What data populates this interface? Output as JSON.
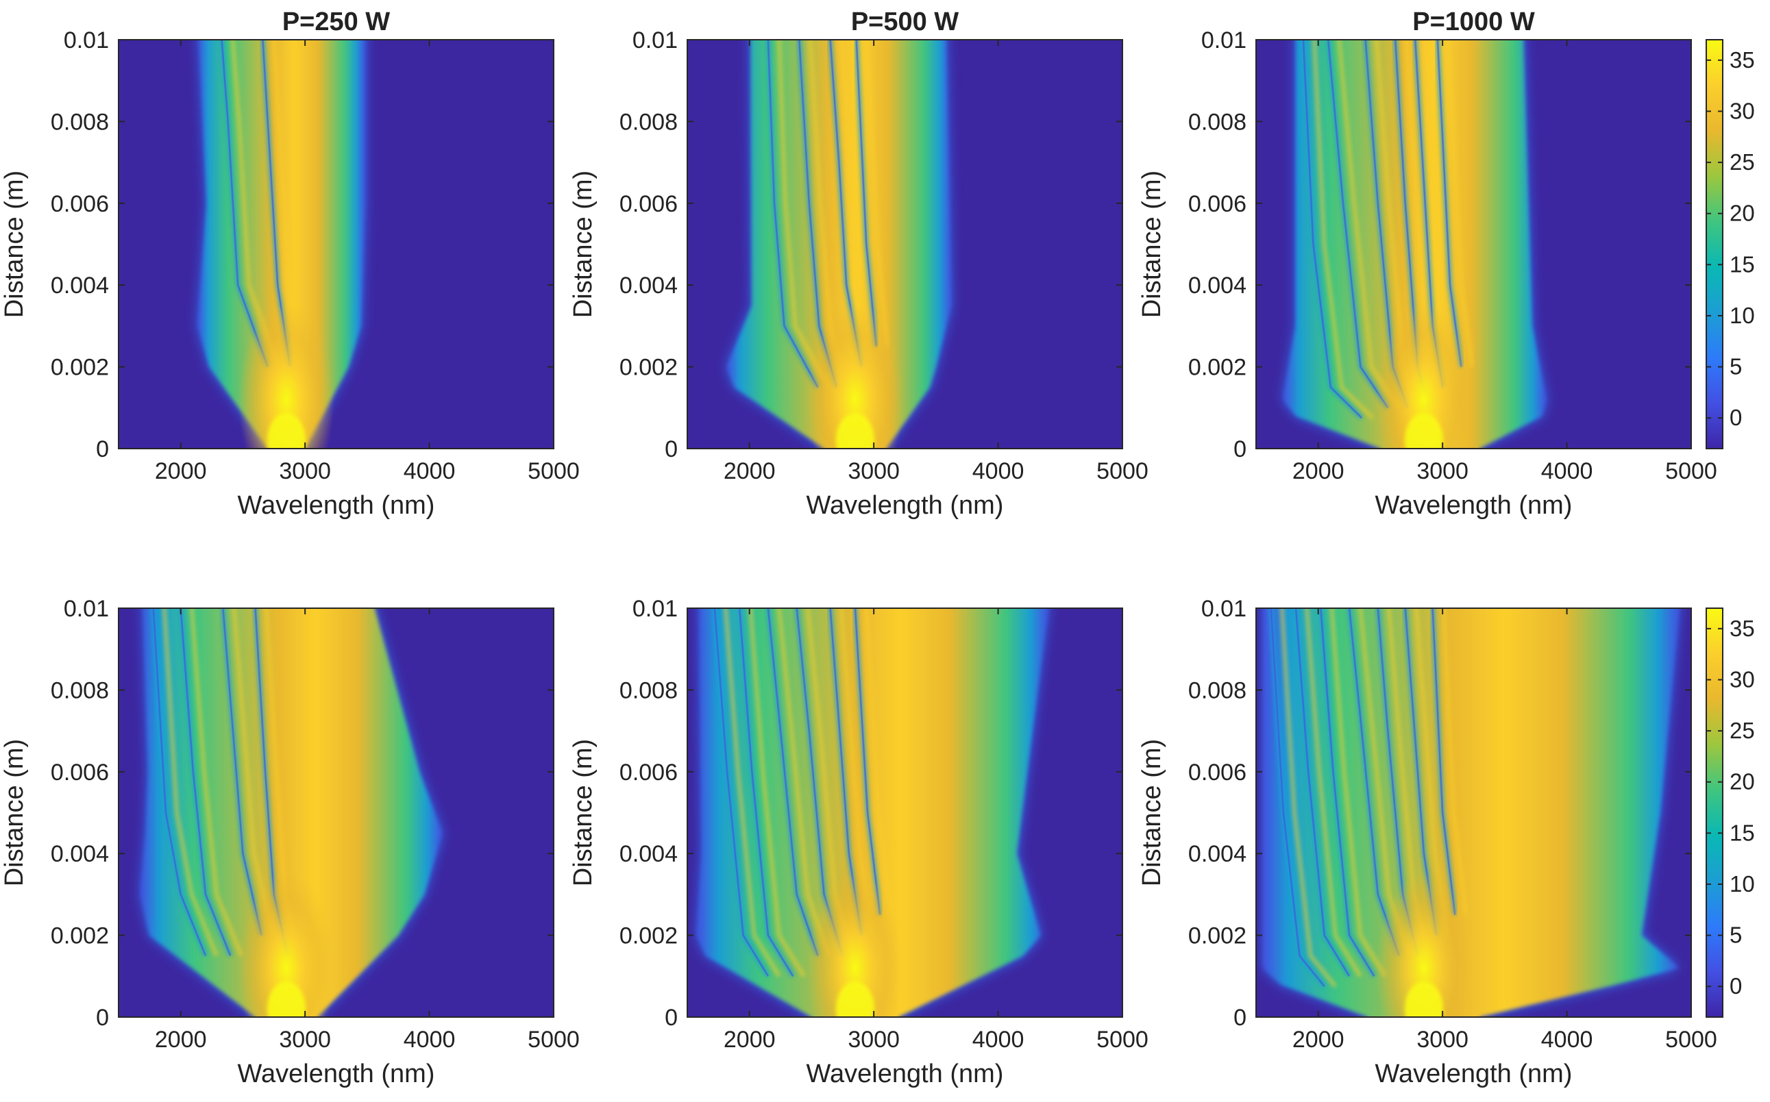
{
  "colors": {
    "background_floor": "#3d27a0",
    "parula": [
      "#3e26a8",
      "#4350e3",
      "#2d7bfa",
      "#1c9ed3",
      "#0ab8b4",
      "#40c57f",
      "#9dc73e",
      "#e9b82e",
      "#fbcf2c",
      "#f9fa14"
    ]
  },
  "chart_data": [
    {
      "type": "heatmap",
      "row": 1,
      "col": 1,
      "title": "P=250 W",
      "xlabel": "Wavelength (nm)",
      "ylabel": "Distance (m)",
      "xlim": [
        1500,
        5000
      ],
      "ylim": [
        0,
        0.01
      ],
      "xticks": [
        "2000",
        "3000",
        "4000",
        "5000"
      ],
      "yticks": [
        "0",
        "0.002",
        "0.004",
        "0.006",
        "0.008",
        "0.01"
      ],
      "clim": [
        -3,
        37
      ],
      "pump_wavelength": 2850,
      "edges": [
        [
          0,
          2700,
          3000
        ],
        [
          0.002,
          2230,
          3350
        ],
        [
          0.003,
          2140,
          3450
        ],
        [
          0.006,
          2210,
          3480
        ],
        [
          0.01,
          2150,
          3480
        ]
      ],
      "stripes": [
        [
          2700,
          0.004,
          2460,
          0.006,
          2420,
          0.008,
          2380,
          0.01,
          2330
        ],
        [
          2880,
          0.004,
          2780,
          0.007,
          2720,
          0.01,
          2660
        ]
      ]
    },
    {
      "type": "heatmap",
      "row": 1,
      "col": 2,
      "title": "P=500 W",
      "xlabel": "Wavelength (nm)",
      "ylabel": "Distance (m)",
      "xlim": [
        1500,
        5000
      ],
      "ylim": [
        0,
        0.01
      ],
      "xticks": [
        "2000",
        "3000",
        "4000",
        "5000"
      ],
      "yticks": [
        "0",
        "0.002",
        "0.004",
        "0.006",
        "0.008",
        "0.01"
      ],
      "clim": [
        -3,
        37
      ],
      "pump_wavelength": 2850,
      "edges": [
        [
          0,
          2600,
          3100
        ],
        [
          0.0015,
          1880,
          3450
        ],
        [
          0.002,
          1820,
          3500
        ],
        [
          0.0035,
          2020,
          3620
        ],
        [
          0.01,
          2010,
          3580
        ]
      ],
      "stripes": [
        [
          2550,
          0.003,
          2280,
          0.006,
          2200,
          0.01,
          2150
        ],
        [
          2700,
          0.003,
          2560,
          0.006,
          2480,
          0.01,
          2400
        ],
        [
          2900,
          0.004,
          2780,
          0.007,
          2720,
          0.01,
          2650
        ],
        [
          3020,
          0.005,
          2940,
          0.01,
          2860
        ]
      ]
    },
    {
      "type": "heatmap",
      "row": 1,
      "col": 3,
      "title": "P=1000 W",
      "xlabel": "Wavelength (nm)",
      "ylabel": "Distance (m)",
      "xlim": [
        1500,
        5000
      ],
      "ylim": [
        0,
        0.01
      ],
      "xticks": [
        "2000",
        "3000",
        "4000",
        "5000"
      ],
      "yticks": [
        "0",
        "0.002",
        "0.004",
        "0.006",
        "0.008",
        "0.01"
      ],
      "clim": [
        -3,
        37
      ],
      "pump_wavelength": 2850,
      "edges": [
        [
          0,
          2500,
          3300
        ],
        [
          0.0008,
          1820,
          3800
        ],
        [
          0.0012,
          1720,
          3830
        ],
        [
          0.003,
          1820,
          3720
        ],
        [
          0.01,
          1820,
          3650
        ]
      ],
      "stripes": [
        [
          2350,
          0.0015,
          2100,
          0.005,
          1960,
          0.01,
          1880
        ],
        [
          2560,
          0.002,
          2340,
          0.006,
          2200,
          0.01,
          2080
        ],
        [
          2720,
          0.002,
          2600,
          0.006,
          2480,
          0.01,
          2380
        ],
        [
          2880,
          0.002,
          2800,
          0.006,
          2700,
          0.01,
          2620
        ],
        [
          3000,
          0.003,
          2920,
          0.007,
          2840,
          0.01,
          2780
        ],
        [
          3150,
          0.004,
          3060,
          0.01,
          2960
        ]
      ]
    },
    {
      "type": "heatmap",
      "row": 2,
      "col": 1,
      "title": "",
      "xlabel": "Wavelength (nm)",
      "ylabel": "Distance (m)",
      "xlim": [
        1500,
        5000
      ],
      "ylim": [
        0,
        0.01
      ],
      "xticks": [
        "2000",
        "3000",
        "4000",
        "5000"
      ],
      "yticks": [
        "0",
        "0.002",
        "0.004",
        "0.006",
        "0.008",
        "0.01"
      ],
      "clim": [
        -3,
        37
      ],
      "pump_wavelength": 2850,
      "edges": [
        [
          0,
          2600,
          3100
        ],
        [
          0.002,
          1750,
          3750
        ],
        [
          0.003,
          1680,
          3960
        ],
        [
          0.0045,
          1720,
          4100
        ],
        [
          0.006,
          1740,
          3920
        ],
        [
          0.01,
          1700,
          3560
        ]
      ],
      "stripes": [
        [
          2200,
          0.003,
          2000,
          0.005,
          1880,
          0.01,
          1780
        ],
        [
          2400,
          0.003,
          2200,
          0.006,
          2100,
          0.01,
          2000
        ],
        [
          2650,
          0.004,
          2500,
          0.007,
          2420,
          0.01,
          2340
        ],
        [
          2860,
          0.003,
          2750,
          0.006,
          2680,
          0.01,
          2600
        ]
      ]
    },
    {
      "type": "heatmap",
      "row": 2,
      "col": 2,
      "title": "",
      "xlabel": "Wavelength (nm)",
      "ylabel": "Distance (m)",
      "xlim": [
        1500,
        5000
      ],
      "ylim": [
        0,
        0.01
      ],
      "xticks": [
        "2000",
        "3000",
        "4000",
        "5000"
      ],
      "yticks": [
        "0",
        "0.002",
        "0.004",
        "0.006",
        "0.008",
        "0.01"
      ],
      "clim": [
        -3,
        37
      ],
      "pump_wavelength": 2850,
      "edges": [
        [
          0,
          2500,
          3200
        ],
        [
          0.0015,
          1650,
          4200
        ],
        [
          0.002,
          1580,
          4340
        ],
        [
          0.004,
          1620,
          4150
        ],
        [
          0.01,
          1600,
          4400
        ]
      ],
      "stripes": [
        [
          2150,
          0.002,
          1950,
          0.006,
          1820,
          0.01,
          1720
        ],
        [
          2350,
          0.002,
          2150,
          0.006,
          2020,
          0.01,
          1920
        ],
        [
          2550,
          0.003,
          2380,
          0.007,
          2250,
          0.01,
          2150
        ],
        [
          2750,
          0.003,
          2600,
          0.007,
          2480,
          0.01,
          2380
        ],
        [
          2900,
          0.004,
          2800,
          0.008,
          2700,
          0.01,
          2650
        ],
        [
          3050,
          0.005,
          2950,
          0.01,
          2850
        ]
      ]
    },
    {
      "type": "heatmap",
      "row": 2,
      "col": 3,
      "title": "",
      "xlabel": "Wavelength (nm)",
      "ylabel": "Distance (m)",
      "xlim": [
        1500,
        5000
      ],
      "ylim": [
        0,
        0.01
      ],
      "xticks": [
        "2000",
        "3000",
        "4000",
        "5000"
      ],
      "yticks": [
        "0",
        "0.002",
        "0.004",
        "0.006",
        "0.008",
        "0.01"
      ],
      "clim": [
        -3,
        37
      ],
      "pump_wavelength": 2850,
      "edges": [
        [
          0,
          2400,
          3300
        ],
        [
          0.0008,
          1700,
          4400
        ],
        [
          0.0012,
          1560,
          4900
        ],
        [
          0.002,
          1560,
          4600
        ],
        [
          0.005,
          1560,
          4750
        ],
        [
          0.01,
          1560,
          4900
        ]
      ],
      "stripes": [
        [
          2050,
          0.0015,
          1850,
          0.005,
          1720,
          0.01,
          1620
        ],
        [
          2250,
          0.002,
          2050,
          0.006,
          1920,
          0.01,
          1820
        ],
        [
          2450,
          0.002,
          2250,
          0.006,
          2120,
          0.01,
          2020
        ],
        [
          2650,
          0.003,
          2480,
          0.007,
          2350,
          0.01,
          2250
        ],
        [
          2800,
          0.003,
          2680,
          0.007,
          2560,
          0.01,
          2480
        ],
        [
          2950,
          0.004,
          2850,
          0.008,
          2750,
          0.01,
          2700
        ],
        [
          3100,
          0.005,
          3000,
          0.01,
          2920
        ]
      ]
    }
  ],
  "colorbars": [
    {
      "row": 1,
      "ticks": [
        "35",
        "30",
        "25",
        "20",
        "15",
        "10",
        "5",
        "0"
      ],
      "tick_values": [
        35,
        30,
        25,
        20,
        15,
        10,
        5,
        0
      ],
      "range": [
        -3,
        37
      ]
    },
    {
      "row": 2,
      "ticks": [
        "35",
        "30",
        "25",
        "20",
        "15",
        "10",
        "5",
        "0"
      ],
      "tick_values": [
        35,
        30,
        25,
        20,
        15,
        10,
        5,
        0
      ],
      "range": [
        -3,
        37
      ]
    }
  ]
}
